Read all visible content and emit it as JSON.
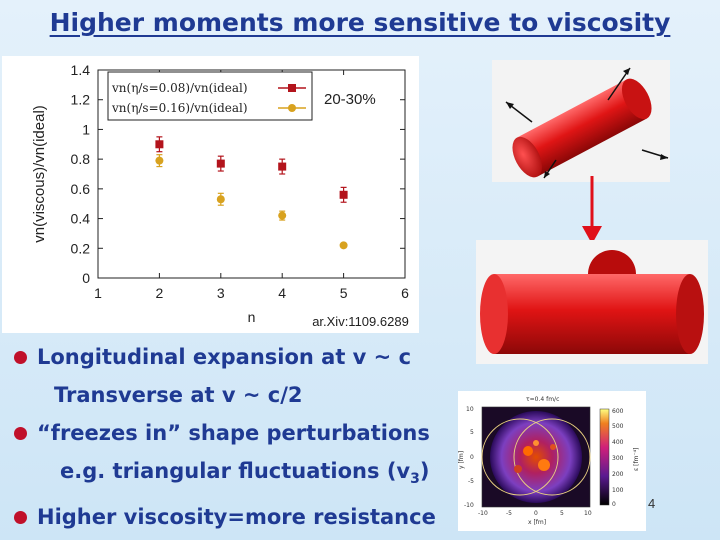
{
  "title": "Higher moments more sensitive to viscosity",
  "chart_data": {
    "type": "scatter",
    "xlabel": "n",
    "ylabel": "vn(viscous)/vn(ideal)",
    "xlim": [
      1,
      6
    ],
    "ylim": [
      0,
      1.4
    ],
    "x_ticks": [
      "1",
      "2",
      "3",
      "4",
      "5",
      "6"
    ],
    "y_ticks": [
      "0",
      "0.2",
      "0.4",
      "0.6",
      "0.8",
      "1",
      "1.2",
      "1.4"
    ],
    "annotation": "20-30%",
    "series": [
      {
        "name": "vn(η/s=0.08)/vn(ideal)",
        "color": "#b3141c",
        "marker": "square",
        "x": [
          2,
          3,
          4,
          5
        ],
        "y": [
          0.9,
          0.77,
          0.75,
          0.56
        ],
        "err": [
          0.05,
          0.05,
          0.05,
          0.05
        ]
      },
      {
        "name": "vn(η/s=0.16)/vn(ideal)",
        "color": "#d8a21f",
        "marker": "circle",
        "x": [
          2,
          3,
          4,
          5
        ],
        "y": [
          0.79,
          0.53,
          0.42,
          0.22
        ],
        "err": [
          0.04,
          0.04,
          0.03,
          0.01
        ]
      }
    ]
  },
  "citation": "ar.Xiv:1109.6289",
  "bullets": [
    {
      "lines": [
        "Longitudinal expansion at v ~ c",
        "Transverse at v ~ c/2"
      ]
    },
    {
      "lines": [
        "“freezes in” shape perturbations",
        "e.g. triangular fluctuations (v3)"
      ]
    },
    {
      "lines": [
        "Higher viscosity=more resistance"
      ]
    }
  ],
  "sim": {
    "label": "τ=0.4 fm/c",
    "ylabel": "y [fm]",
    "xlabel": "x [fm]",
    "cbar_label": "ε [fm⁻⁴]",
    "x_ticks": [
      "-10",
      "-5",
      "0",
      "5",
      "10"
    ],
    "y_ticks": [
      "10",
      "5",
      "0",
      "-5",
      "-10"
    ],
    "cbar_ticks": [
      "600",
      "500",
      "400",
      "300",
      "200",
      "100",
      "0"
    ]
  },
  "page_number": "4"
}
